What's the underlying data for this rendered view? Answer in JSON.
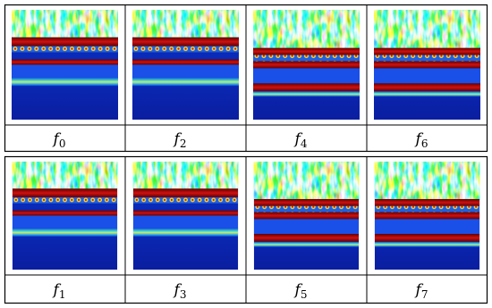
{
  "panels": [
    [
      {
        "base": "f",
        "sub": "0"
      },
      {
        "base": "f",
        "sub": "2"
      },
      {
        "base": "f",
        "sub": "4"
      },
      {
        "base": "f",
        "sub": "6"
      }
    ],
    [
      {
        "base": "f",
        "sub": "1"
      },
      {
        "base": "f",
        "sub": "3"
      },
      {
        "base": "f",
        "sub": "5"
      },
      {
        "base": "f",
        "sub": "7"
      }
    ]
  ]
}
